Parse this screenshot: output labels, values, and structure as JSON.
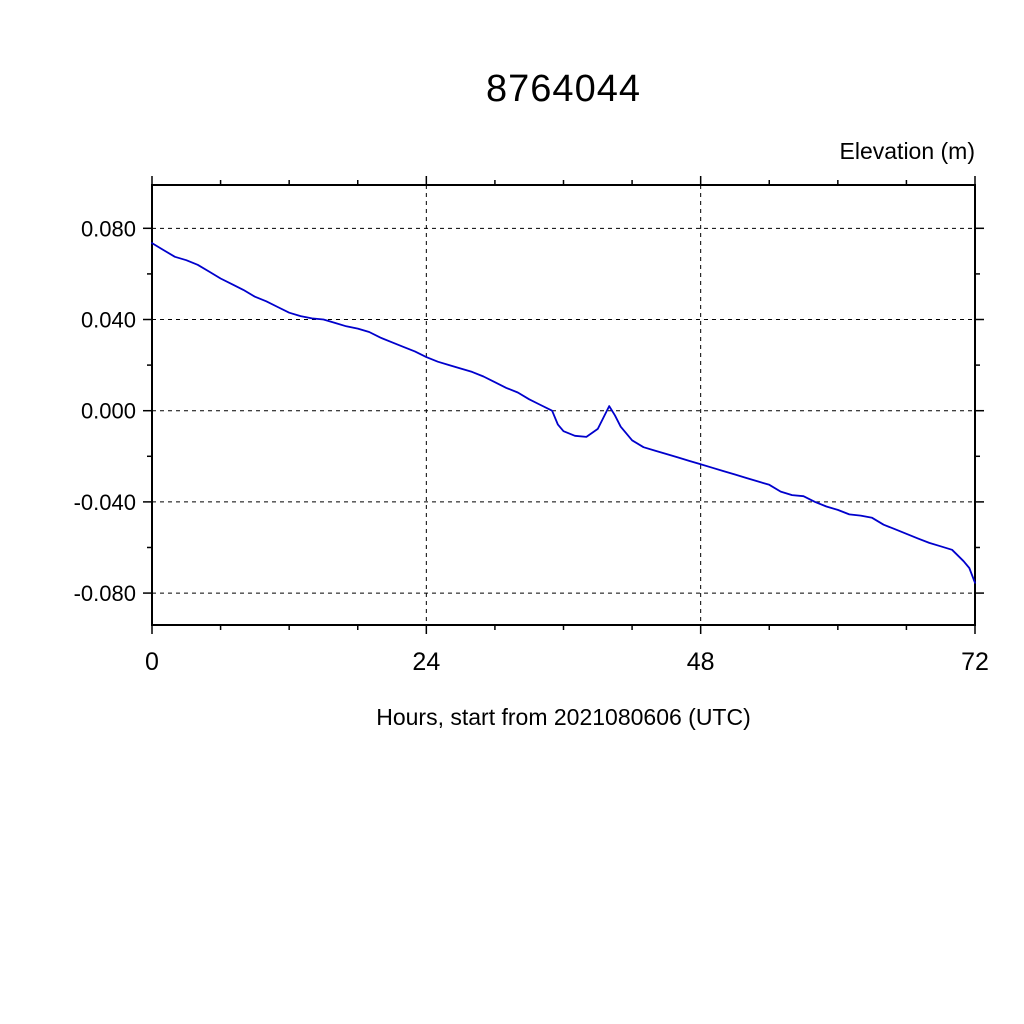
{
  "title": "8764044",
  "y_axis_header": "Elevation (m)",
  "x_axis_label": "Hours, start from 2021080606 (UTC)",
  "chart_data": {
    "type": "line",
    "title": "8764044",
    "xlabel": "Hours, start from 2021080606 (UTC)",
    "ylabel": "Elevation (m)",
    "xlim": [
      0,
      72
    ],
    "ylim": [
      -0.094,
      0.099
    ],
    "xticks": [
      0,
      24,
      48,
      72
    ],
    "xtick_labels": [
      "0",
      "24",
      "48",
      "72"
    ],
    "x_minor_step": 6,
    "yticks": [
      0.08,
      0.04,
      0.0,
      -0.04,
      -0.08
    ],
    "ytick_labels": [
      "0.080",
      "0.040",
      "0.000",
      "-0.040",
      "-0.080"
    ],
    "y_minor_step": 0.02,
    "grid": "dashed",
    "legend": "none",
    "line_color": "#0000cc",
    "series_name": "elevation",
    "x": [
      0,
      1,
      2,
      3,
      4,
      5,
      6,
      7,
      8,
      9,
      10,
      11,
      12,
      13,
      14,
      15,
      16,
      17,
      18,
      19,
      20,
      21,
      22,
      23,
      24,
      25,
      26,
      27,
      28,
      29,
      30,
      31,
      32,
      33,
      34,
      35,
      35.5,
      36,
      37,
      38,
      39,
      39.5,
      40,
      40.5,
      41,
      42,
      43,
      44,
      45,
      46,
      47,
      48,
      49,
      50,
      51,
      52,
      53,
      54,
      55,
      56,
      57,
      58,
      59,
      60,
      61,
      62,
      63,
      64,
      65,
      66,
      67,
      68,
      69,
      70,
      71,
      71.5,
      72
    ],
    "y": [
      0.0735,
      0.0705,
      0.0675,
      0.066,
      0.064,
      0.061,
      0.058,
      0.0555,
      0.053,
      0.05,
      0.048,
      0.0455,
      0.043,
      0.0415,
      0.0405,
      0.04,
      0.0385,
      0.037,
      0.036,
      0.0345,
      0.032,
      0.03,
      0.028,
      0.026,
      0.0235,
      0.0215,
      0.02,
      0.0185,
      0.017,
      0.015,
      0.0125,
      0.01,
      0.008,
      0.005,
      0.0025,
      0.0,
      -0.006,
      -0.009,
      -0.011,
      -0.0115,
      -0.008,
      -0.003,
      0.002,
      -0.002,
      -0.007,
      -0.013,
      -0.016,
      -0.0175,
      -0.019,
      -0.0205,
      -0.022,
      -0.0235,
      -0.025,
      -0.0265,
      -0.028,
      -0.0295,
      -0.031,
      -0.0325,
      -0.0355,
      -0.037,
      -0.0375,
      -0.04,
      -0.042,
      -0.0435,
      -0.0455,
      -0.046,
      -0.047,
      -0.05,
      -0.052,
      -0.054,
      -0.056,
      -0.058,
      -0.0595,
      -0.061,
      -0.066,
      -0.069,
      -0.0755
    ]
  }
}
